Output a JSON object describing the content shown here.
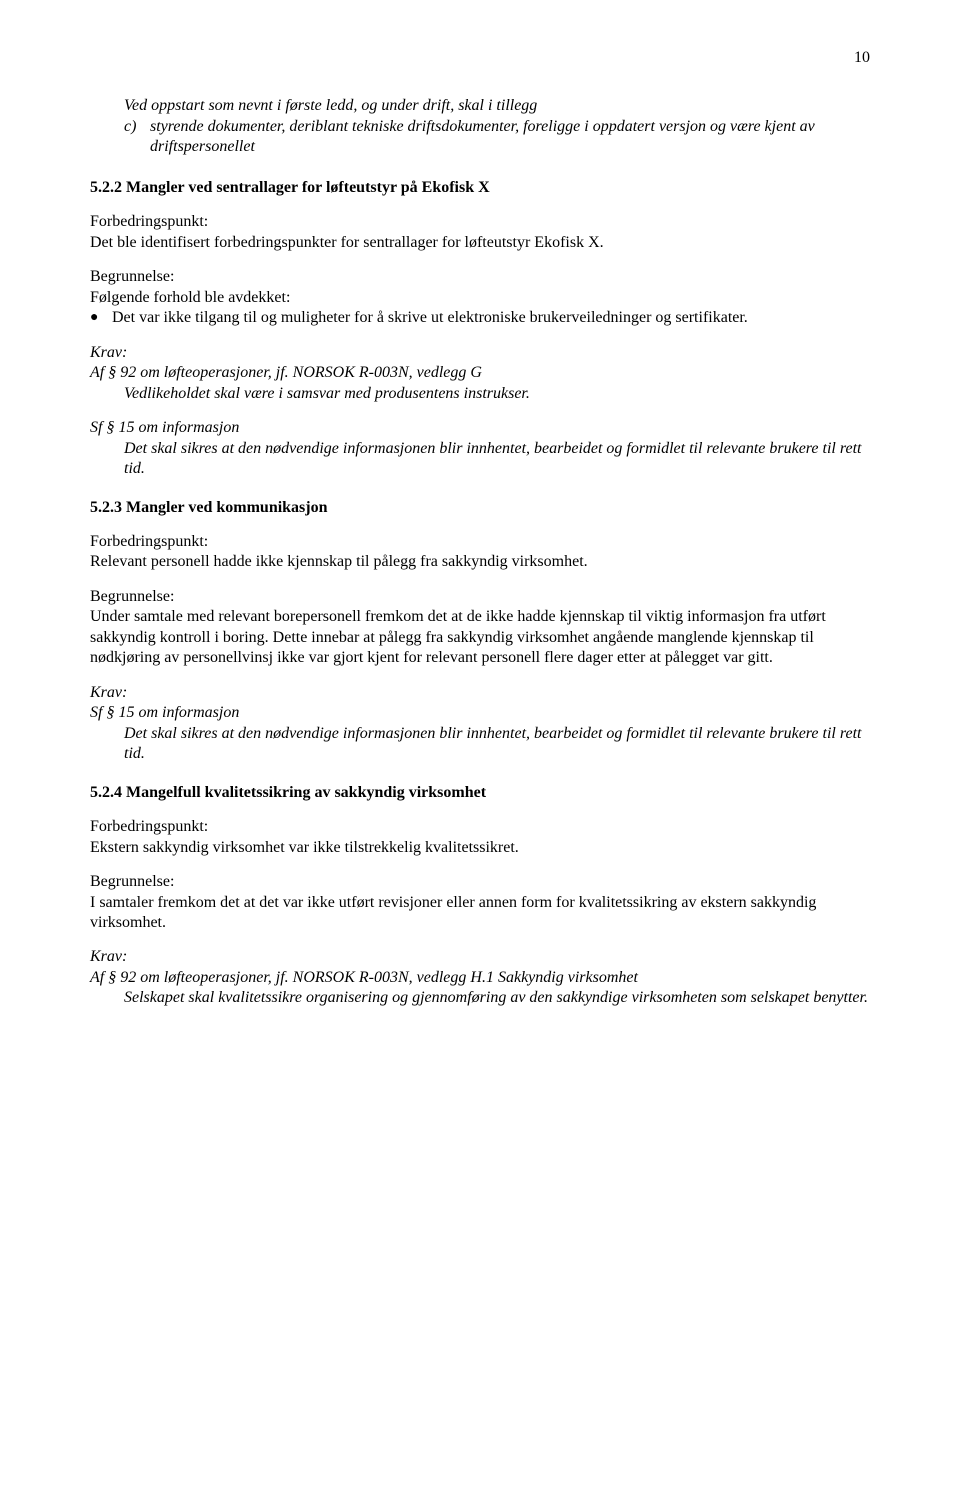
{
  "page_number": "10",
  "intro": {
    "line1": "Ved oppstart som nevnt i første ledd, og under drift, skal i tillegg",
    "c_marker": "c)",
    "c_text": "styrende dokumenter, deriblant tekniske driftsdokumenter, foreligge i oppdatert versjon og være kjent av driftspersonellet"
  },
  "s522": {
    "heading": "5.2.2    Mangler ved sentrallager for løfteutstyr på Ekofisk X",
    "fp_label": "Forbedringspunkt:",
    "fp_text": "Det ble identifisert forbedringspunkter for sentrallager for løfteutstyr Ekofisk X.",
    "bg_label": "Begrunnelse:",
    "bg_text": "Følgende forhold ble avdekket:",
    "bullet1": "Det var ikke tilgang til og muligheter for å skrive ut elektroniske brukerveiledninger og sertifikater.",
    "krav_label": "Krav:",
    "krav_af_title": "Af § 92 om løfteoperasjoner, jf. NORSOK R-003N, vedlegg G",
    "krav_af_body": "Vedlikeholdet skal være i samsvar med produsentens instrukser.",
    "krav_sf_title": "Sf § 15 om informasjon",
    "krav_sf_body": "Det skal sikres at den nødvendige informasjonen blir innhentet, bearbeidet og formidlet til relevante brukere til rett tid."
  },
  "s523": {
    "heading": "5.2.3    Mangler ved kommunikasjon",
    "fp_label": "Forbedringspunkt:",
    "fp_text": "Relevant personell hadde ikke kjennskap til pålegg fra sakkyndig virksomhet.",
    "bg_label": "Begrunnelse:",
    "bg_text": "Under samtale med relevant borepersonell fremkom det at de ikke hadde kjennskap til viktig informasjon fra utført sakkyndig kontroll i boring. Dette innebar at pålegg fra sakkyndig virksomhet angående manglende kjennskap til nødkjøring av personellvinsj ikke var gjort kjent for relevant personell flere dager etter at pålegget var gitt.",
    "krav_label": "Krav:",
    "krav_sf_title": "Sf § 15 om informasjon",
    "krav_sf_body": "Det skal sikres at den nødvendige informasjonen blir innhentet, bearbeidet og formidlet til relevante brukere til rett tid."
  },
  "s524": {
    "heading": "5.2.4    Mangelfull kvalitetssikring av sakkyndig virksomhet",
    "fp_label": "Forbedringspunkt:",
    "fp_text": "Ekstern sakkyndig virksomhet var ikke tilstrekkelig kvalitetssikret.",
    "bg_label": "Begrunnelse:",
    "bg_text": "I samtaler fremkom det at det var ikke utført revisjoner eller annen form for kvalitetssikring av ekstern sakkyndig virksomhet.",
    "krav_label": "Krav:",
    "krav_af_title": "Af § 92 om løfteoperasjoner, jf. NORSOK R-003N, vedlegg H.1 Sakkyndig virksomhet",
    "krav_af_body": "Selskapet skal kvalitetssikre organisering og gjennomføring av den sakkyndige virksomheten som selskapet benytter."
  }
}
